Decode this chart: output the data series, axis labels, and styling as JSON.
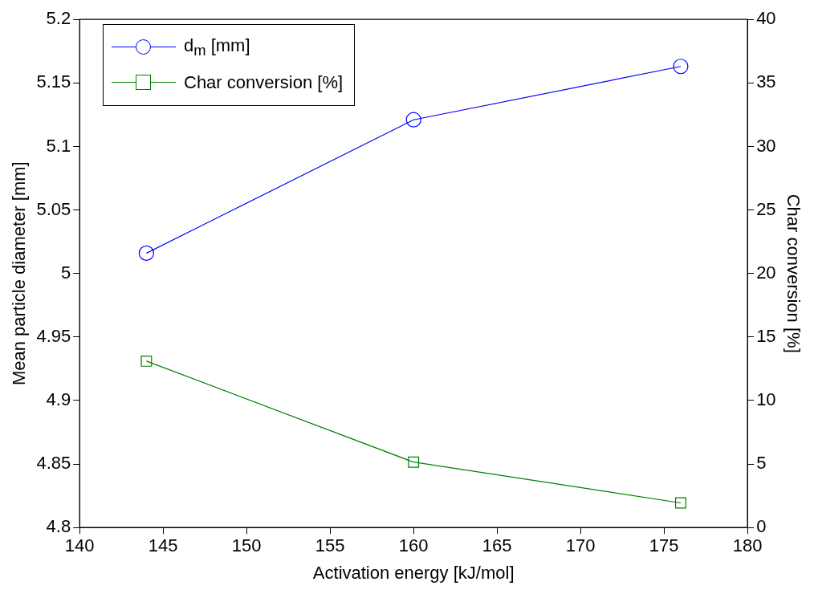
{
  "chart_data": {
    "type": "line",
    "xlabel": "Activation energy [kJ/mol]",
    "ylabel": "Mean particle diameter [mm]",
    "y2label": "Char conversion [%]",
    "xlim": [
      140,
      180
    ],
    "xticks": [
      140,
      145,
      150,
      155,
      160,
      165,
      170,
      175,
      180
    ],
    "ylim": [
      4.8,
      5.2
    ],
    "yticks": [
      4.8,
      4.85,
      4.9,
      4.95,
      5,
      5.05,
      5.1,
      5.15,
      5.2
    ],
    "y2lim": [
      0,
      40
    ],
    "y2ticks": [
      0,
      5,
      10,
      15,
      20,
      25,
      30,
      35,
      40
    ],
    "grid": false,
    "legend": "top left",
    "line_style": "solid",
    "series": [
      {
        "name": "d$_{m}$ [mm]",
        "color": "#0000ff",
        "marker": "circle",
        "x": [
          144,
          160,
          176
        ],
        "values": [
          5.016,
          5.121,
          5.163
        ]
      },
      {
        "name": "Char conversion [%]",
        "color": "#008000",
        "marker": "square",
        "axis": "y2",
        "x": [
          144,
          160,
          176
        ],
        "values": [
          13.1,
          5.15,
          1.94
        ]
      }
    ]
  }
}
